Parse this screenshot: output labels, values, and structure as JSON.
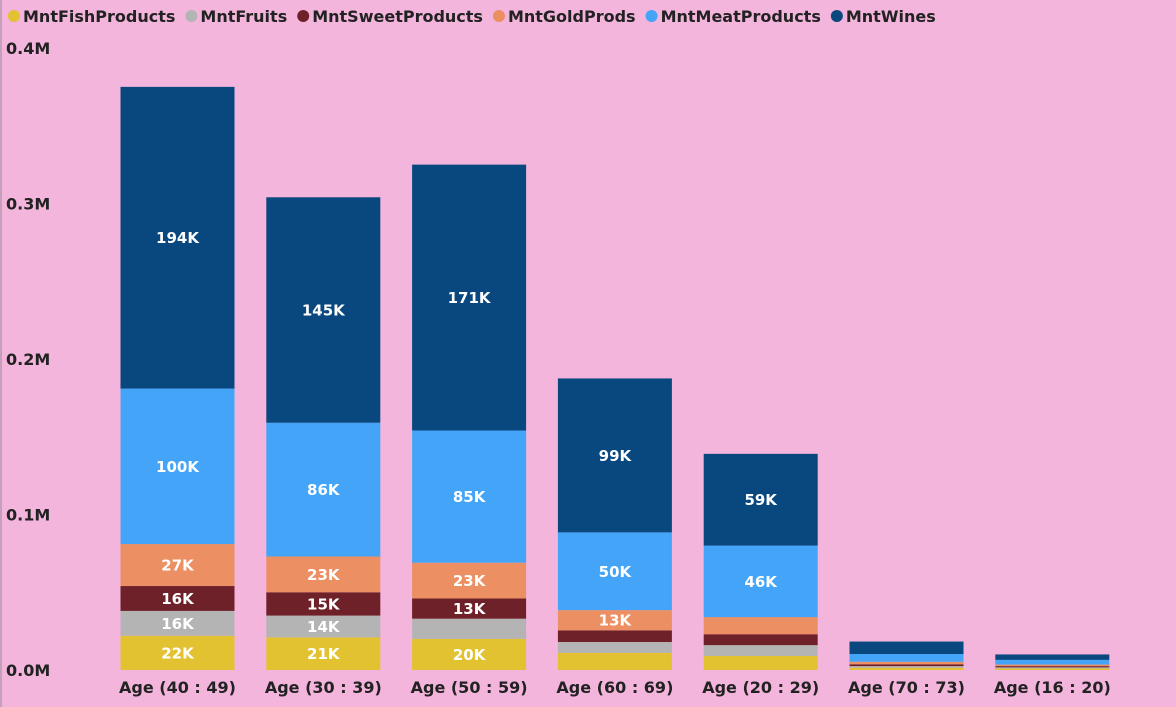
{
  "chart_data": {
    "type": "bar",
    "stacked": true,
    "categories": [
      "Age (40 : 49)",
      "Age (30 : 39)",
      "Age (50 : 59)",
      "Age (60 : 69)",
      "Age (20 : 29)",
      "Age (70 : 73)",
      "Age (16 : 20)"
    ],
    "series": [
      {
        "name": "MntFishProducts",
        "color": "#E2C231",
        "values": [
          22000,
          21000,
          20000,
          11000,
          9000,
          1500,
          1000
        ],
        "labels": [
          "22K",
          "21K",
          "20K",
          "",
          "",
          "",
          ""
        ],
        "label_color": "#FFFFFF"
      },
      {
        "name": "MntFruits",
        "color": "#B4B4B4",
        "values": [
          16000,
          14000,
          13000,
          7000,
          7000,
          1000,
          700
        ],
        "labels": [
          "16K",
          "14K",
          "",
          "",
          "",
          "",
          ""
        ],
        "label_color": "#FFFFFF"
      },
      {
        "name": "MntSweetProducts",
        "color": "#6E2129",
        "values": [
          16000,
          15000,
          13000,
          7500,
          7000,
          1200,
          800
        ],
        "labels": [
          "16K",
          "15K",
          "13K",
          "",
          "",
          "",
          ""
        ],
        "label_color": "#FFFFFF"
      },
      {
        "name": "MntGoldProds",
        "color": "#EC8F62",
        "values": [
          27000,
          23000,
          23000,
          13000,
          11000,
          1600,
          1000
        ],
        "labels": [
          "27K",
          "23K",
          "23K",
          "13K",
          "",
          "",
          ""
        ],
        "label_color": "#FFFFFF"
      },
      {
        "name": "MntMeatProducts",
        "color": "#44A5F8",
        "values": [
          100000,
          86000,
          85000,
          50000,
          46000,
          5000,
          3000
        ],
        "labels": [
          "100K",
          "86K",
          "85K",
          "50K",
          "46K",
          "",
          ""
        ],
        "label_color": "#FFFFFF"
      },
      {
        "name": "MntWines",
        "color": "#08487F",
        "values": [
          194000,
          145000,
          171000,
          99000,
          59000,
          8000,
          3500
        ],
        "labels": [
          "194K",
          "145K",
          "171K",
          "99K",
          "59K",
          "",
          ""
        ],
        "label_color": "#FFFFFF"
      }
    ],
    "y_ticks": [
      "0.0M",
      "0.1M",
      "0.2M",
      "0.3M",
      "0.4M"
    ],
    "y_tick_values": [
      0,
      100000,
      200000,
      300000,
      400000
    ],
    "ylim": [
      0,
      400000
    ],
    "legend_position": "top-left",
    "grid": false
  }
}
